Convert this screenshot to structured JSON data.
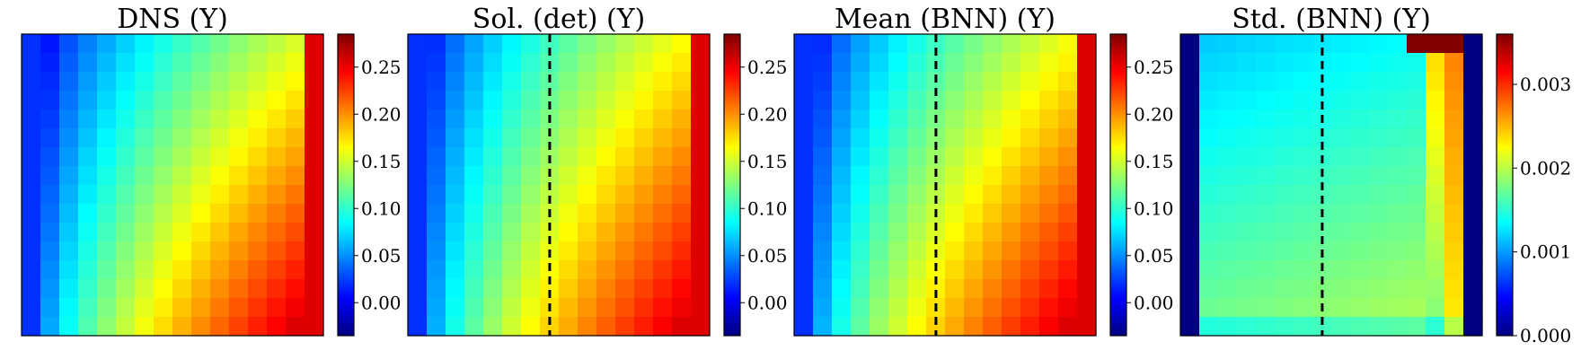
{
  "chart_data": [
    {
      "type": "heatmap",
      "title": "DNS (Y)",
      "grid_size": 16,
      "divider": false,
      "colormap": "jet",
      "clim": [
        -0.035,
        0.285
      ],
      "colorbar_ticks": [
        "0.00",
        "0.05",
        "0.10",
        "0.15",
        "0.20",
        "0.25"
      ],
      "colorbar_tick_values": [
        0.0,
        0.05,
        0.1,
        0.15,
        0.2,
        0.25
      ],
      "field_model": {
        "base": -0.025,
        "amp": 0.29,
        "col_exp": 0.6,
        "row_weight": 0.36,
        "edge_left": 0.02,
        "edge_right": 0.255
      }
    },
    {
      "type": "heatmap",
      "title": "Sol. (det) (Y)",
      "grid_size": 16,
      "divider": true,
      "colormap": "jet",
      "clim": [
        -0.035,
        0.285
      ],
      "colorbar_ticks": [
        "0.00",
        "0.05",
        "0.10",
        "0.15",
        "0.20",
        "0.25"
      ],
      "colorbar_tick_values": [
        0.0,
        0.05,
        0.1,
        0.15,
        0.2,
        0.25
      ],
      "field_model": {
        "base": -0.025,
        "amp": 0.29,
        "col_exp": 0.55,
        "row_weight": 0.32,
        "edge_left": 0.02,
        "edge_right": 0.255
      }
    },
    {
      "type": "heatmap",
      "title": "Mean (BNN) (Y)",
      "grid_size": 16,
      "divider": true,
      "colormap": "jet",
      "clim": [
        -0.035,
        0.285
      ],
      "colorbar_ticks": [
        "0.00",
        "0.05",
        "0.10",
        "0.15",
        "0.20",
        "0.25"
      ],
      "colorbar_tick_values": [
        0.0,
        0.05,
        0.1,
        0.15,
        0.2,
        0.25
      ],
      "field_model": {
        "base": -0.025,
        "amp": 0.29,
        "col_exp": 0.55,
        "row_weight": 0.33,
        "edge_left": 0.02,
        "edge_right": 0.255
      }
    },
    {
      "type": "heatmap",
      "title": "Std. (BNN) (Y)",
      "grid_size": 16,
      "divider": true,
      "colormap": "jet",
      "clim": [
        0.0,
        0.0036
      ],
      "colorbar_ticks": [
        "0.000",
        "0.001",
        "0.002",
        "0.003"
      ],
      "colorbar_tick_values": [
        0.0,
        0.001,
        0.002,
        0.003
      ],
      "field_model": {
        "std": true,
        "edge_left": 0.0,
        "edge_right": 0.0
      }
    }
  ]
}
